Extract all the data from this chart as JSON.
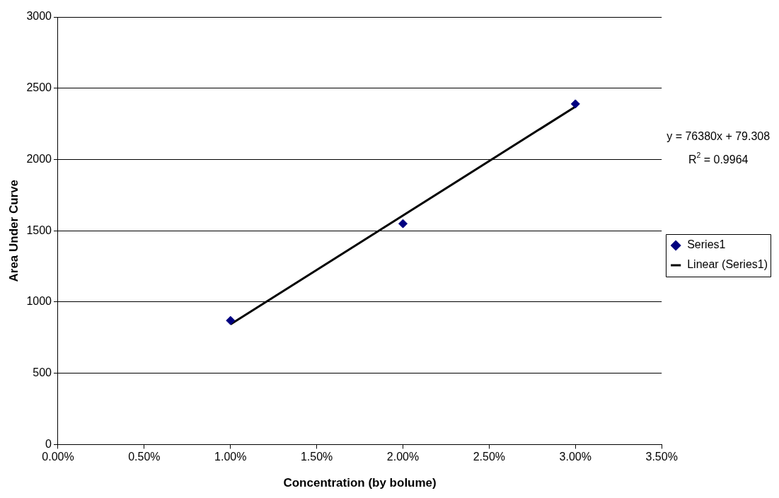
{
  "chart_data": {
    "type": "scatter",
    "xlabel": "Concentration (by bolume)",
    "ylabel": "Area Under Curve",
    "series": [
      {
        "name": "Series1",
        "type": "scatter",
        "color": "#000080",
        "x": [
          0.01,
          0.02,
          0.03
        ],
        "values": [
          870,
          1550,
          2390
        ],
        "marker": "diamond"
      },
      {
        "name": "Linear (Series1)",
        "type": "line",
        "color": "#000000",
        "x": [
          0.01,
          0.03
        ],
        "values": [
          843,
          2371
        ],
        "marker": "none",
        "line_style": "solid"
      }
    ],
    "xlim": [
      0,
      0.035
    ],
    "xticks": [
      {
        "value": 0,
        "label": "0.00%"
      },
      {
        "value": 0.005,
        "label": "0.50%"
      },
      {
        "value": 0.01,
        "label": "1.00%"
      },
      {
        "value": 0.015,
        "label": "1.50%"
      },
      {
        "value": 0.02,
        "label": "2.00%"
      },
      {
        "value": 0.025,
        "label": "2.50%"
      },
      {
        "value": 0.03,
        "label": "3.00%"
      },
      {
        "value": 0.035,
        "label": "3.50%"
      }
    ],
    "ylim": [
      0,
      3000
    ],
    "yticks": [
      0,
      500,
      1000,
      1500,
      2000,
      2500,
      3000
    ],
    "annotations": [
      "y = 76380x + 79.308",
      "R$^{2}$ = 0.9964"
    ],
    "grid": "y",
    "legend": "right"
  }
}
